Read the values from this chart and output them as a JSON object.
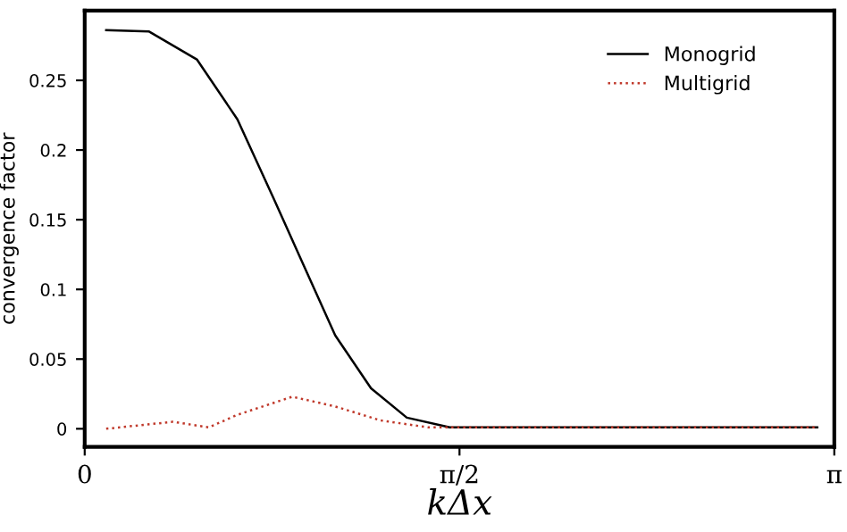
{
  "chart_data": {
    "type": "line",
    "xlabel": "kΔx",
    "ylabel": "convergence factor",
    "xlim": [
      0,
      3.1416
    ],
    "xticks": [
      0,
      {
        "value": 1.5708,
        "label": "π/2"
      },
      {
        "value": 3.1416,
        "label": "π"
      }
    ],
    "ylim": [
      -0.013,
      0.3
    ],
    "yticks": [
      0,
      0.05,
      0.1,
      0.15,
      0.2,
      0.25
    ],
    "grid": false,
    "legend": "top right",
    "series": [
      {
        "name": "Monogrid",
        "color": "#000000",
        "line_style": "solid",
        "x": [
          0.09,
          0.27,
          0.47,
          0.64,
          0.79,
          0.9,
          1.05,
          1.2,
          1.35,
          1.53,
          3.07
        ],
        "values": [
          0.286,
          0.285,
          0.265,
          0.222,
          0.166,
          0.124,
          0.067,
          0.029,
          0.008,
          0.001,
          0.001
        ]
      },
      {
        "name": "Multigrid",
        "color": "#c0392b",
        "line_style": "dotted",
        "x": [
          0.09,
          0.37,
          0.52,
          0.64,
          0.87,
          1.05,
          1.24,
          1.44,
          3.07
        ],
        "values": [
          0.0,
          0.005,
          0.001,
          0.01,
          0.023,
          0.016,
          0.006,
          0.001,
          0.001
        ]
      }
    ]
  }
}
